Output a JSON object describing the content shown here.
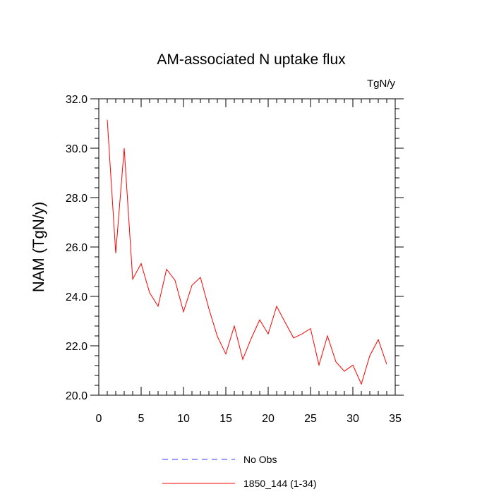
{
  "chart_data": {
    "type": "line",
    "title": "AM-associated N uptake flux",
    "units": "TgN/y",
    "xlabel": "",
    "ylabel": "NAM  (TgN/y)",
    "xlim": [
      0,
      35
    ],
    "ylim": [
      20.0,
      32.0
    ],
    "x_ticks": [
      "0",
      "5",
      "10",
      "15",
      "20",
      "25",
      "30",
      "35"
    ],
    "y_ticks": [
      "20.0",
      "22.0",
      "24.0",
      "26.0",
      "28.0",
      "30.0",
      "32.0"
    ],
    "grid": false,
    "legend_position": "bottom",
    "series": [
      {
        "name": "No Obs",
        "color": "#3333ff",
        "dash": true,
        "x": [],
        "values": []
      },
      {
        "name": "1850_144 (1-34)",
        "color": "#ff0000",
        "dash": false,
        "x": [
          1,
          2,
          3,
          4,
          5,
          6,
          7,
          8,
          9,
          10,
          11,
          12,
          13,
          14,
          15,
          16,
          17,
          18,
          19,
          20,
          21,
          22,
          23,
          24,
          25,
          26,
          27,
          28,
          29,
          30,
          31,
          32,
          33,
          34
        ],
        "values": [
          31.15,
          25.75,
          30.0,
          24.7,
          25.33,
          24.15,
          23.6,
          25.1,
          24.65,
          23.38,
          24.45,
          24.77,
          23.5,
          22.38,
          21.67,
          22.8,
          21.45,
          22.3,
          23.05,
          22.48,
          23.6,
          22.95,
          22.32,
          22.48,
          22.7,
          21.22,
          22.4,
          21.35,
          20.97,
          21.22,
          20.45,
          21.6,
          22.25,
          21.25
        ]
      }
    ]
  }
}
